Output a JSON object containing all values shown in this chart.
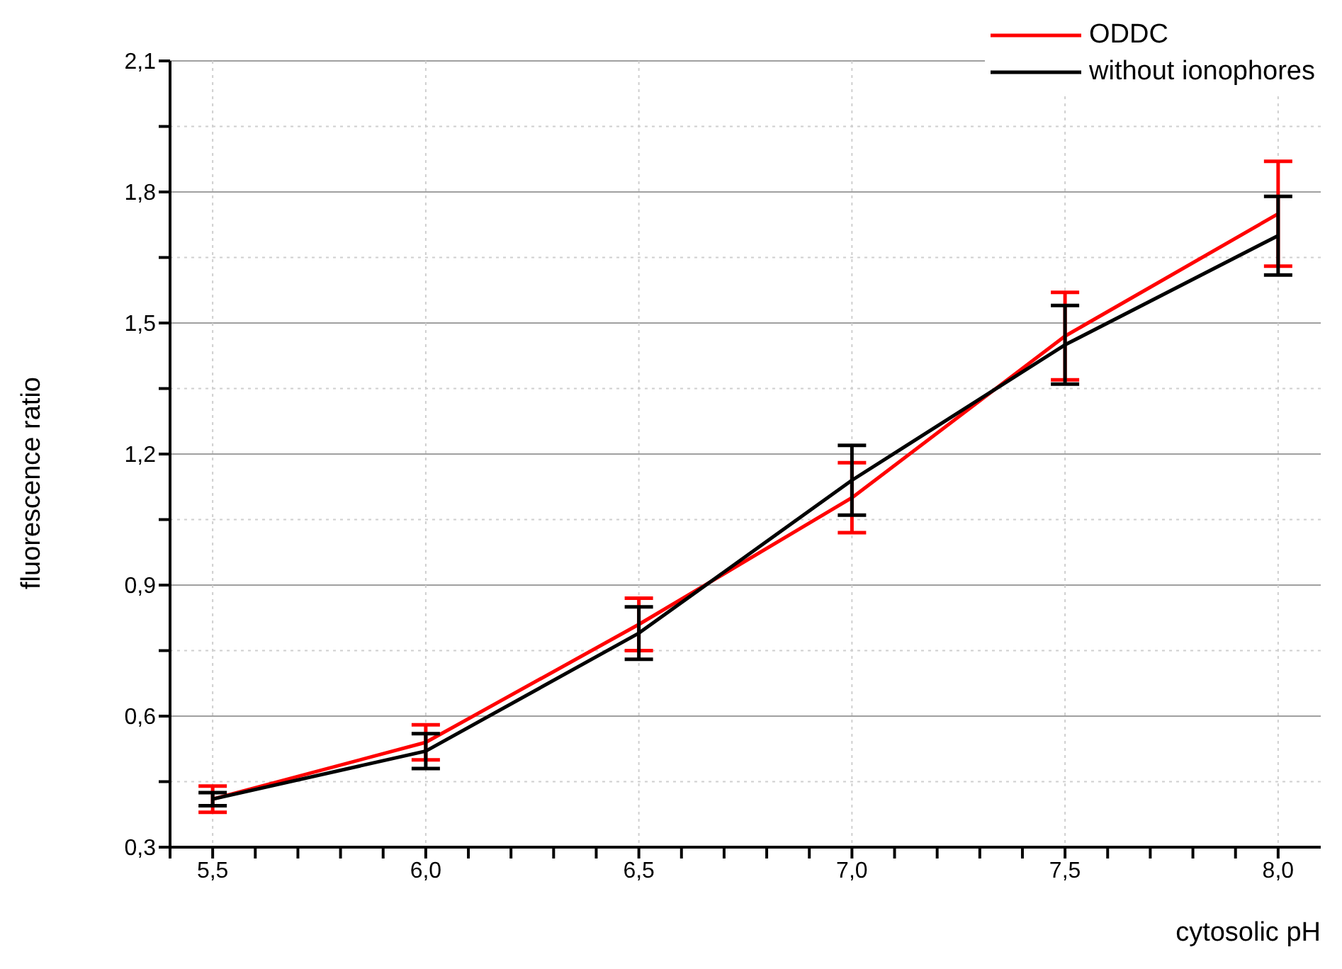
{
  "chart_data": {
    "type": "line",
    "xlabel": "cytosolic pH",
    "ylabel": "fluorescence ratio",
    "x": [
      5.5,
      6.0,
      6.5,
      7.0,
      7.5,
      8.0
    ],
    "series": [
      {
        "name": "ODDC",
        "color": "#ff0000",
        "values": [
          0.41,
          0.54,
          0.81,
          1.1,
          1.47,
          1.75
        ],
        "errors": [
          0.03,
          0.04,
          0.06,
          0.08,
          0.1,
          0.12
        ]
      },
      {
        "name": "without ionophores",
        "color": "#000000",
        "values": [
          0.41,
          0.52,
          0.79,
          1.14,
          1.45,
          1.7
        ],
        "errors": [
          0.015,
          0.04,
          0.06,
          0.08,
          0.09,
          0.09
        ]
      }
    ],
    "xlim": [
      5.4,
      8.1
    ],
    "xticks": [
      {
        "value": 5.4,
        "label": null
      },
      {
        "value": 5.5,
        "label": "5,5"
      },
      {
        "value": 5.6,
        "label": null
      },
      {
        "value": 5.7,
        "label": null
      },
      {
        "value": 5.8,
        "label": null
      },
      {
        "value": 5.9,
        "label": null
      },
      {
        "value": 6.0,
        "label": "6,0"
      },
      {
        "value": 6.1,
        "label": null
      },
      {
        "value": 6.2,
        "label": null
      },
      {
        "value": 6.3,
        "label": null
      },
      {
        "value": 6.4,
        "label": null
      },
      {
        "value": 6.5,
        "label": "6,5"
      },
      {
        "value": 6.6,
        "label": null
      },
      {
        "value": 6.7,
        "label": null
      },
      {
        "value": 6.8,
        "label": null
      },
      {
        "value": 6.9,
        "label": null
      },
      {
        "value": 7.0,
        "label": "7,0"
      },
      {
        "value": 7.1,
        "label": null
      },
      {
        "value": 7.2,
        "label": null
      },
      {
        "value": 7.3,
        "label": null
      },
      {
        "value": 7.4,
        "label": null
      },
      {
        "value": 7.5,
        "label": "7,5"
      },
      {
        "value": 7.6,
        "label": null
      },
      {
        "value": 7.7,
        "label": null
      },
      {
        "value": 7.8,
        "label": null
      },
      {
        "value": 7.9,
        "label": null
      },
      {
        "value": 8.0,
        "label": "8,0"
      }
    ],
    "ylim": [
      0.3,
      2.1
    ],
    "yticks": [
      {
        "value": 0.3,
        "label": "0,3"
      },
      {
        "value": 0.45,
        "label": null
      },
      {
        "value": 0.6,
        "label": "0,6"
      },
      {
        "value": 0.75,
        "label": null
      },
      {
        "value": 0.9,
        "label": "0,9"
      },
      {
        "value": 1.05,
        "label": null
      },
      {
        "value": 1.2,
        "label": "1,2"
      },
      {
        "value": 1.35,
        "label": null
      },
      {
        "value": 1.5,
        "label": "1,5"
      },
      {
        "value": 1.65,
        "label": null
      },
      {
        "value": 1.8,
        "label": "1,8"
      },
      {
        "value": 1.95,
        "label": null
      },
      {
        "value": 2.1,
        "label": "2,1"
      }
    ],
    "grid": true,
    "legend": "top right",
    "marker": "none",
    "line_style": "solid"
  }
}
